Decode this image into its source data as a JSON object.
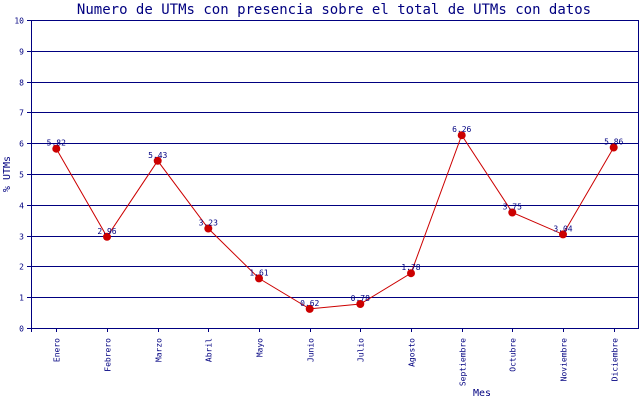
{
  "chart_data": {
    "type": "line",
    "title": "Numero de UTMs con presencia sobre el total de UTMs con datos",
    "xlabel": "Mes",
    "ylabel": "% UTMs",
    "ylim": [
      0,
      10
    ],
    "yticks": [
      0,
      1,
      2,
      3,
      4,
      5,
      6,
      7,
      8,
      9,
      10
    ],
    "categories": [
      "Enero",
      "Febrero",
      "Marzo",
      "Abril",
      "Mayo",
      "Junio",
      "Julio",
      "Agosto",
      "Septiembre",
      "Octubre",
      "Noviembre",
      "Diciembre"
    ],
    "series": [
      {
        "values": [
          5.82,
          2.96,
          5.43,
          3.23,
          1.61,
          0.62,
          0.78,
          1.78,
          6.26,
          3.75,
          3.04,
          5.86
        ],
        "labels": [
          "5.82",
          "2.96",
          "5.43",
          "3.23",
          "1.61",
          "0.62",
          "0.78",
          "1.78",
          "6.26",
          "3.75",
          "3.04",
          "5.86"
        ]
      }
    ],
    "grid": true,
    "colors": {
      "line": "#cc0000",
      "marker": "#cc0000",
      "grid": "#000080",
      "text": "#000080"
    }
  }
}
